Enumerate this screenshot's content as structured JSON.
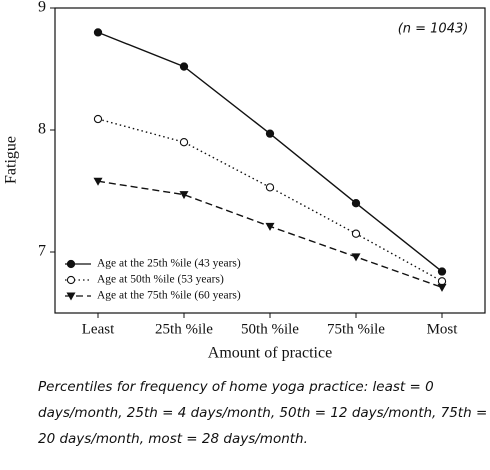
{
  "chart_data": {
    "type": "line",
    "annotation": "(n = 1043)",
    "xlabel": "Amount of practice",
    "ylabel": "Fatigue",
    "categories": [
      "Least",
      "25th %ile",
      "50th %ile",
      "75th %ile",
      "Most"
    ],
    "ylim": [
      6.5,
      9
    ],
    "yticks": [
      7,
      8,
      9
    ],
    "legend": "lower left",
    "series": [
      {
        "name": "Age at the 25th %ile (43 years)",
        "color": "#111111",
        "dash": "solid",
        "marker": "filled-circle",
        "values": [
          8.8,
          8.52,
          7.97,
          7.4,
          6.84
        ]
      },
      {
        "name": "Age at 50th %ile (53 years)",
        "color": "#111111",
        "dash": "dotted",
        "marker": "open-circle",
        "values": [
          8.09,
          7.9,
          7.53,
          7.15,
          6.76
        ]
      },
      {
        "name": "Age at the 75th %ile (60 years)",
        "color": "#111111",
        "dash": "dashed",
        "marker": "triangle-down",
        "values": [
          7.58,
          7.47,
          7.21,
          6.96,
          6.71
        ]
      }
    ],
    "caption": "Percentiles for frequency of home yoga practice: least = 0 days/month, 25th = 4 days/month, 50th = 12 days/month, 75th = 20 days/month, most = 28 days/month."
  }
}
